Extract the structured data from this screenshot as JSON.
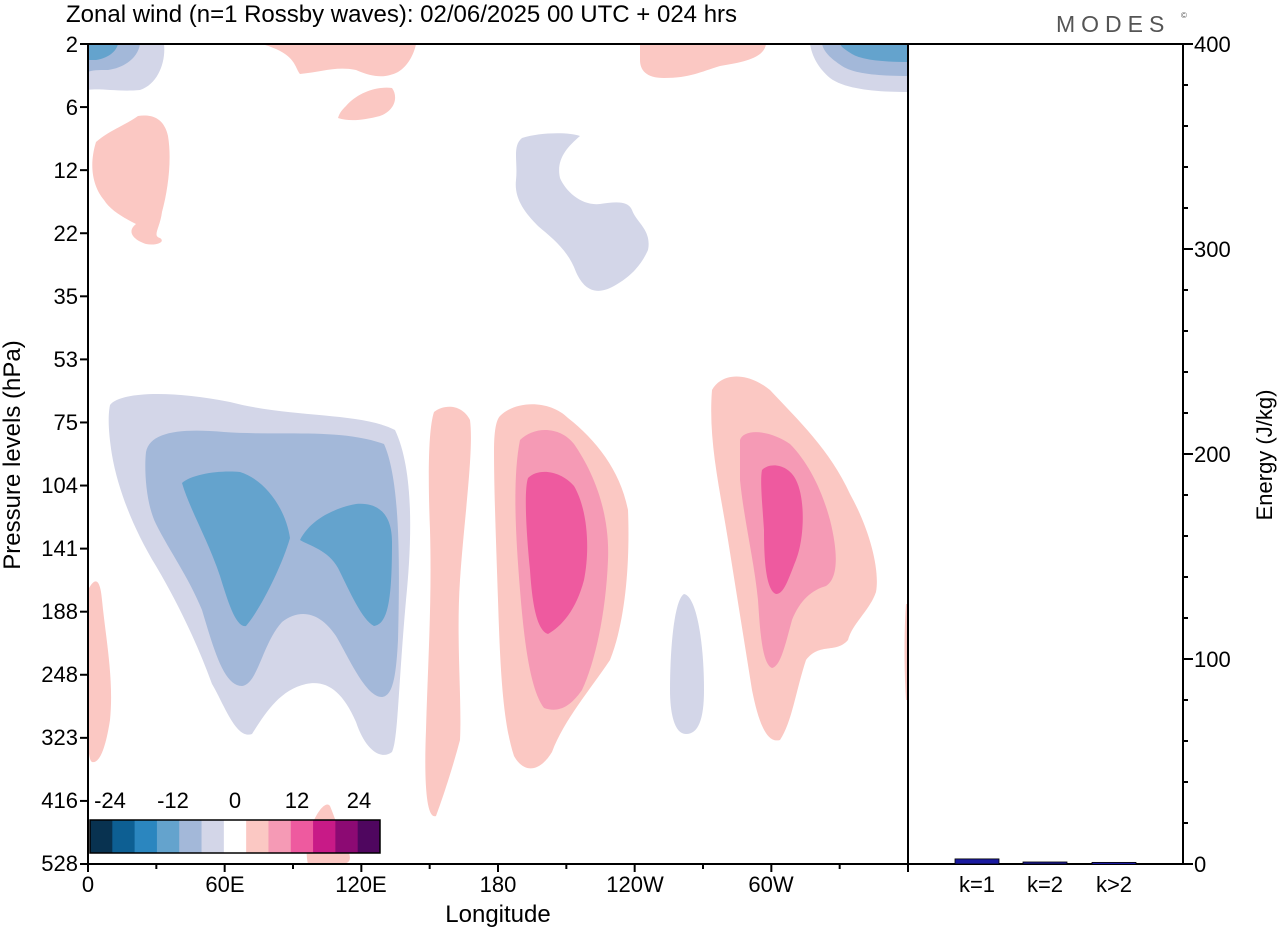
{
  "title": "Zonal wind (n=1 Rossby waves):  02/06/2025  00 UTC  + 024 hrs",
  "brand": "MODES",
  "brand_mark": "©",
  "chart_data": [
    {
      "type": "heatmap",
      "xlabel": "Longitude",
      "ylabel": "Pressure levels (hPa)",
      "x_ticks": [
        "0",
        "60E",
        "120E",
        "180",
        "120W",
        "60W"
      ],
      "y_ticks": [
        "2",
        "6",
        "12",
        "22",
        "35",
        "53",
        "75",
        "104",
        "141",
        "188",
        "248",
        "323",
        "416",
        "528"
      ],
      "y_scale": "categorical levels, top = 2 hPa",
      "colorbar": {
        "labels": [
          "-24",
          "-12",
          "0",
          "12",
          "24"
        ],
        "colors": [
          "#083250",
          "#0d5f93",
          "#2b86bf",
          "#64a3cd",
          "#a3b8d9",
          "#d3d6e8",
          "#ffffff",
          "#fbc8c3",
          "#f59ab5",
          "#ee5a9f",
          "#c81a87",
          "#8c0a73",
          "#4f065f"
        ]
      },
      "features": [
        {
          "sign": "negative",
          "peak": -18,
          "lon": "45E-125E",
          "levels": "85-250 hPa"
        },
        {
          "sign": "negative",
          "peak": -18,
          "lon": "0 and 355E",
          "levels": "2-4 hPa"
        },
        {
          "sign": "negative",
          "peak": -6,
          "lon": "160W-130W",
          "levels": "9-30 hPa"
        },
        {
          "sign": "negative",
          "peak": -6,
          "lon": "105W",
          "levels": "190-320 hPa"
        },
        {
          "sign": "positive",
          "peak": 18,
          "lon": "190E-160W",
          "levels": "95-250 hPa"
        },
        {
          "sign": "positive",
          "peak": 18,
          "lon": "60W",
          "levels": "95-230 hPa"
        },
        {
          "sign": "positive",
          "peak": 6,
          "lon": "155E",
          "levels": "80-400 hPa"
        },
        {
          "sign": "positive",
          "peak": 6,
          "lon": "10E-30E",
          "levels": "8-22 hPa"
        },
        {
          "sign": "positive",
          "peak": 6,
          "lon": "95E-140E",
          "levels": "2-4 hPa"
        }
      ]
    },
    {
      "type": "bar",
      "ylabel": "Energy (J/kg)",
      "ylim": [
        0,
        400
      ],
      "y_ticks": [
        "0",
        "100",
        "200",
        "300",
        "400"
      ],
      "categories": [
        "k=1",
        "k=2",
        "k>2"
      ],
      "values": [
        2,
        0.5,
        0.3
      ],
      "bar_color": "#1a1aa0"
    }
  ]
}
